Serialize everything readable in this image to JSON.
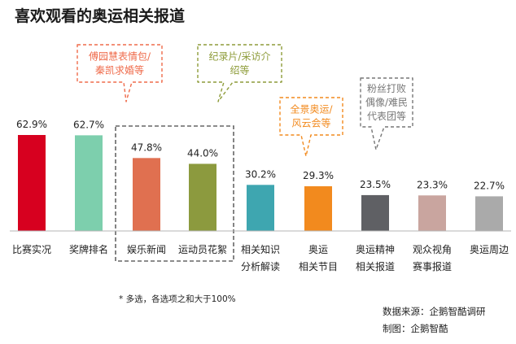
{
  "chart_data": {
    "type": "bar",
    "title": "喜欢观看的奥运相关报道",
    "xlabel": "",
    "ylabel": "",
    "ylim": [
      0,
      70
    ],
    "grid": false,
    "categories": [
      [
        "比赛实况"
      ],
      [
        "奖牌排名"
      ],
      [
        "娱乐新闻"
      ],
      [
        "运动员花絮"
      ],
      [
        "相关知识",
        "分析解读"
      ],
      [
        "奥运",
        "相关节目"
      ],
      [
        "奥运精神",
        "相关报道"
      ],
      [
        "观众视角",
        "赛事报道"
      ],
      [
        "奥运周边"
      ]
    ],
    "values": [
      62.9,
      62.7,
      47.8,
      44.0,
      30.2,
      29.3,
      23.5,
      23.3,
      22.7
    ],
    "value_labels": [
      "62.9%",
      "62.7%",
      "47.8%",
      "44.0%",
      "30.2%",
      "29.3%",
      "23.5%",
      "23.3%",
      "22.7%"
    ],
    "colors": [
      "#d7001f",
      "#7dcfad",
      "#e07050",
      "#8c9a3e",
      "#3ea6b0",
      "#f28a1e",
      "#5f6064",
      "#c9a59f",
      "#aaaaaa"
    ],
    "highlight_group": [
      2,
      3
    ],
    "annotations": [
      {
        "lines": [
          "傅园慧表情包/",
          "秦凯求婚等"
        ],
        "color": "#ef6b4b",
        "target": 2
      },
      {
        "lines": [
          "纪录片/采访介",
          "绍等"
        ],
        "color": "#8e9c3a",
        "target": 3
      },
      {
        "lines": [
          "全景奥运/",
          "风云会等"
        ],
        "color": "#f28a1e",
        "target": 5
      },
      {
        "lines": [
          "粉丝打败",
          "偶像/难民",
          "代表团等"
        ],
        "color": "#777777",
        "target": 6
      }
    ],
    "footnote": "*   多选，各选项之和大于100%",
    "source": "数据来源：企鹅智酷调研",
    "credit": "制图：企鹅智酷"
  }
}
